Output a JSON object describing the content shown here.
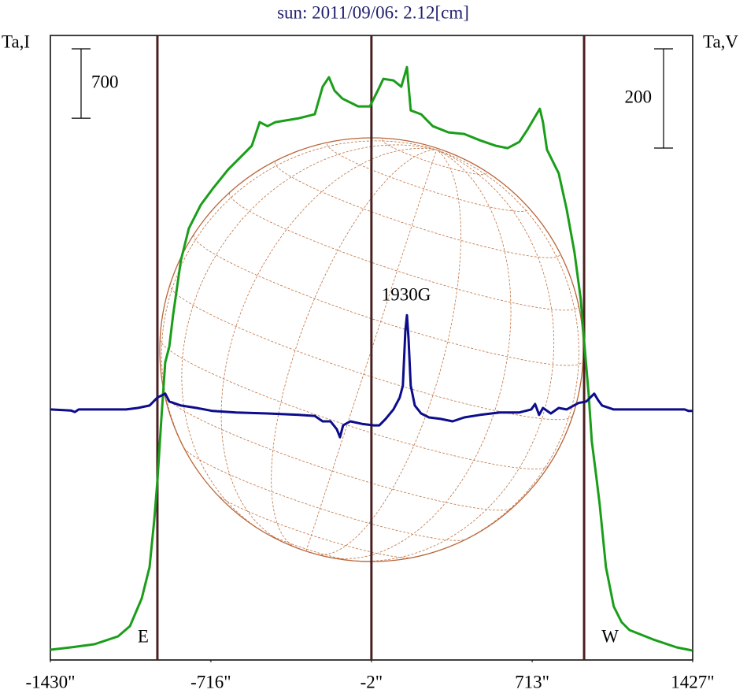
{
  "chart_data": {
    "type": "line",
    "title": "sun: 2011/09/06: 2.12[cm]",
    "ylabel": "Ta,I",
    "y2label": "Ta,V",
    "annotation": "1930G",
    "xlim": [
      -1430,
      1427
    ],
    "xticks": [
      {
        "value": -1430,
        "label": "-1430\""
      },
      {
        "value": -716,
        "label": "-716\""
      },
      {
        "value": -2,
        "label": "-2\""
      },
      {
        "value": 713,
        "label": "713\""
      },
      {
        "value": 1427,
        "label": "1427\""
      }
    ],
    "ylim": [
      -100,
      6200
    ],
    "y2lim": [
      -505,
      754
    ],
    "scale_bars": {
      "y": 700,
      "y2": 200
    },
    "vlines": [
      -954,
      -2,
      944
    ],
    "limb_labels": [
      "E",
      "W"
    ],
    "series": [
      {
        "color": "#1a9e1a",
        "x": [
          -1430,
          -1339,
          -1234,
          -1129,
          -1076,
          -1024,
          -989,
          -968,
          -954,
          -936,
          -919,
          -901,
          -884,
          -849,
          -814,
          -761,
          -709,
          -639,
          -569,
          -534,
          -499,
          -464,
          -429,
          -324,
          -254,
          -219,
          -191,
          -166,
          -131,
          -96,
          -61,
          -9,
          26,
          51,
          96,
          131,
          156,
          173,
          219,
          271,
          341,
          411,
          481,
          551,
          604,
          656,
          691,
          726,
          747,
          761,
          779,
          831,
          866,
          901,
          929,
          943,
          964,
          978,
          996,
          1013,
          1041,
          1076,
          1111,
          1146,
          1251,
          1356,
          1426
        ],
        "values": [
          3,
          27,
          59,
          138,
          242,
          520,
          837,
          1314,
          1711,
          2346,
          2902,
          3061,
          3379,
          3935,
          4253,
          4491,
          4650,
          4848,
          5007,
          5087,
          5325,
          5285,
          5325,
          5365,
          5405,
          5683,
          5778,
          5643,
          5563,
          5524,
          5484,
          5484,
          5643,
          5762,
          5746,
          5683,
          5881,
          5444,
          5405,
          5285,
          5222,
          5206,
          5142,
          5087,
          5063,
          5126,
          5246,
          5381,
          5460,
          5325,
          5047,
          4809,
          4451,
          4014,
          3538,
          3141,
          2585,
          2108,
          1790,
          1473,
          837,
          440,
          281,
          202,
          107,
          27,
          -5
        ]
      },
      {
        "color": "#0c0c8c",
        "axis": "y2",
        "x": [
          -1430,
          -1339,
          -1321,
          -1304,
          -1094,
          -1041,
          -989,
          -954,
          -919,
          -901,
          -849,
          -779,
          -709,
          -604,
          -464,
          -324,
          -254,
          -219,
          -184,
          -156,
          -142,
          -128,
          -96,
          -44,
          9,
          33,
          61,
          96,
          124,
          138,
          149,
          156,
          163,
          173,
          191,
          219,
          254,
          306,
          359,
          411,
          481,
          569,
          656,
          709,
          726,
          744,
          761,
          796,
          831,
          866,
          919,
          954,
          989,
          1006,
          1024,
          1076,
          1216,
          1391,
          1409,
          1426
        ],
        "values": [
          0,
          -2,
          -5,
          0,
          0,
          3,
          8,
          24,
          32,
          16,
          8,
          3,
          -3,
          -6,
          -8,
          -11,
          -13,
          -24,
          -24,
          -40,
          -56,
          -32,
          -24,
          -29,
          -32,
          -32,
          -19,
          0,
          24,
          48,
          159,
          190,
          143,
          48,
          8,
          -8,
          -16,
          -19,
          -24,
          -16,
          -11,
          -6,
          -6,
          0,
          11,
          -11,
          3,
          -8,
          3,
          0,
          13,
          16,
          32,
          19,
          8,
          0,
          0,
          0,
          -3,
          -3
        ]
      }
    ]
  }
}
